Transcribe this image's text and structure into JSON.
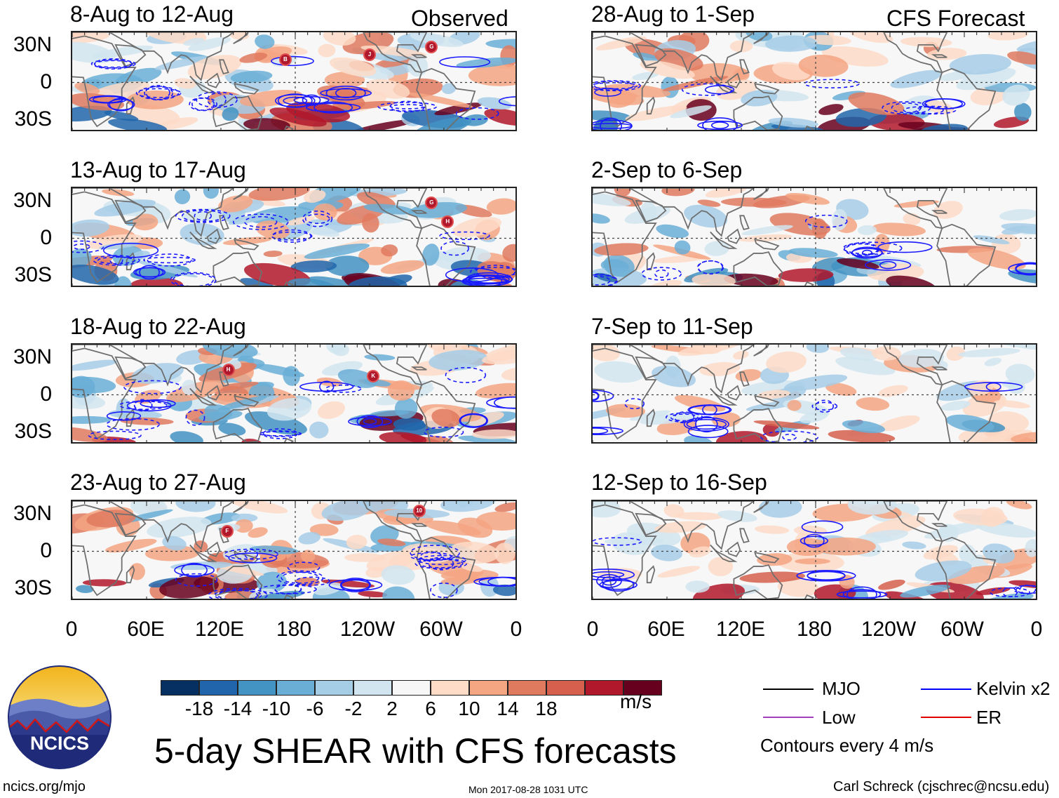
{
  "panels": [
    {
      "title": "8-Aug to 12-Aug",
      "label": "Observed",
      "storms": [
        {
          "id": "B",
          "lon": 172,
          "lat": 18
        },
        {
          "id": "J",
          "lon": 240,
          "lat": 22
        },
        {
          "id": "G",
          "lon": 290,
          "lat": 28
        }
      ]
    },
    {
      "title": "13-Aug to 17-Aug",
      "label": "",
      "storms": [
        {
          "id": "G",
          "lon": 290,
          "lat": 28
        },
        {
          "id": "H",
          "lon": 303,
          "lat": 13
        }
      ]
    },
    {
      "title": "18-Aug to 22-Aug",
      "label": "",
      "storms": [
        {
          "id": "H",
          "lon": 126,
          "lat": 20
        },
        {
          "id": "K",
          "lon": 243,
          "lat": 15
        }
      ]
    },
    {
      "title": "23-Aug to 27-Aug",
      "label": "",
      "storms": [
        {
          "id": "F",
          "lon": 125,
          "lat": 16
        },
        {
          "id": "10",
          "lon": 280,
          "lat": 32
        }
      ]
    },
    {
      "title": "28-Aug to 1-Sep",
      "label": "CFS Forecast",
      "storms": []
    },
    {
      "title": "2-Sep to 6-Sep",
      "label": "",
      "storms": []
    },
    {
      "title": "7-Sep to 11-Sep",
      "label": "",
      "storms": []
    },
    {
      "title": "12-Sep to 16-Sep",
      "label": "",
      "storms": []
    }
  ],
  "y_axis_labels": [
    "30N",
    "0",
    "30S"
  ],
  "x_axis_labels": [
    "0",
    "60E",
    "120E",
    "180",
    "120W",
    "60W",
    "0"
  ],
  "colorbar": {
    "colors": [
      "#053061",
      "#2166ac",
      "#4393c3",
      "#6aaed6",
      "#a6cde6",
      "#d1e5f0",
      "#f7f7f7",
      "#fddbc7",
      "#f4a582",
      "#e07a5f",
      "#d6604d",
      "#b2182b",
      "#67001f"
    ],
    "labels": [
      "-18",
      "-14",
      "-10",
      "-6",
      "-2",
      "2",
      "6",
      "10",
      "14",
      "18"
    ],
    "units": "m/s"
  },
  "legend": [
    {
      "label": "MJO",
      "color": "#000000"
    },
    {
      "label": "Kelvin x2",
      "color": "#0000ff"
    },
    {
      "label": "Low",
      "color": "#a040c0"
    },
    {
      "label": "ER",
      "color": "#e00000"
    }
  ],
  "contour_note": "Contours every 4 m/s",
  "main_title": "5-day SHEAR with CFS forecasts",
  "logo_text": "NCICS",
  "footer": {
    "left": "ncics.org/mjo",
    "center": "Mon 2017-08-28 1031 UTC",
    "right": "Carl Schreck (cjschrec@ncsu.edu)"
  },
  "map_bounds": {
    "lon_min": 0,
    "lon_max": 360,
    "lat_min": -40,
    "lat_max": 40
  }
}
